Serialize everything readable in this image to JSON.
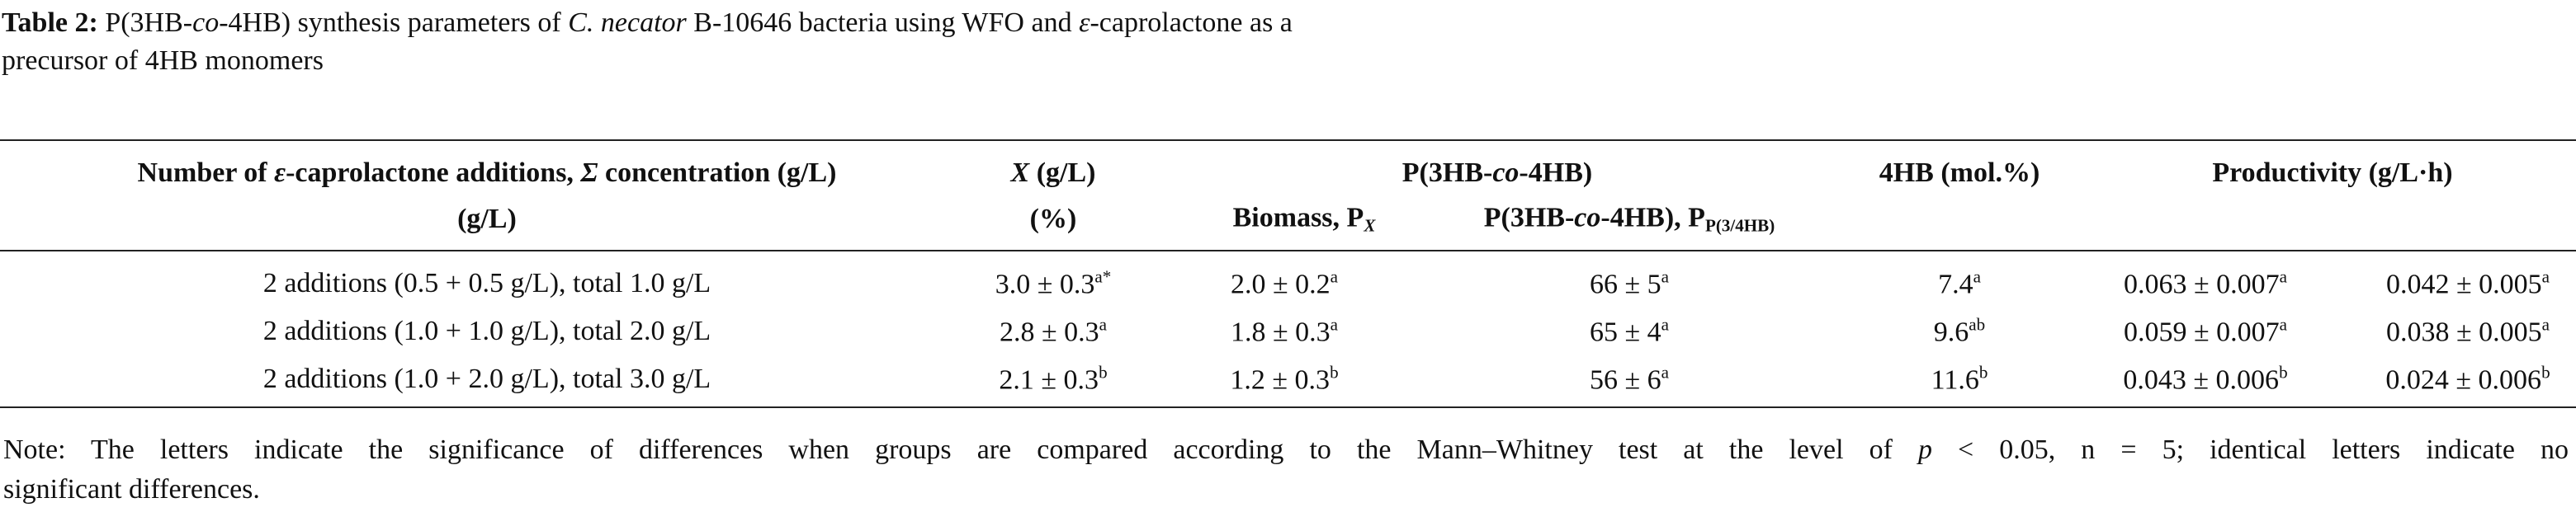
{
  "caption": {
    "lines": [
      [
        {
          "text": "Table 2:",
          "style": "bold"
        },
        {
          "text": " P(3HB-"
        },
        {
          "text": "co",
          "style": "italic"
        },
        {
          "text": "-4HB) synthesis parameters of "
        },
        {
          "text": "C. necator",
          "style": "italic"
        },
        {
          "text": " B-10646 bacteria using WFO and "
        },
        {
          "text": "ε",
          "style": "italic"
        },
        {
          "text": "-caprolactone as a"
        }
      ],
      [
        {
          "text": "precursor of 4HB monomers"
        }
      ]
    ]
  },
  "table": {
    "header": [
      [
        [
          {
            "text": "Number of "
          },
          {
            "text": "ε",
            "style": "italic"
          },
          {
            "text": "-caprolactone additions, "
          },
          {
            "text": "Σ",
            "style": "italic"
          },
          {
            "text": " concentration (g/L)"
          }
        ],
        [
          {
            "text": "X",
            "style": "italic"
          },
          {
            "text": " (g/L)"
          }
        ],
        [
          {
            "text": "P(3HB-"
          },
          {
            "text": "co",
            "style": "italic"
          },
          {
            "text": "-4HB)"
          }
        ],
        [
          {
            "text": "4HB (mol.%)"
          }
        ],
        [
          {
            "text": "Productivity (g/L·h)"
          }
        ]
      ],
      [
        [
          {
            "text": "(g/L)"
          }
        ],
        [
          {
            "text": "(%)"
          }
        ],
        [
          {
            "text": "Biomass, P"
          },
          {
            "text": "X",
            "style": "sub italic"
          }
        ],
        [
          {
            "text": "P(3HB-"
          },
          {
            "text": "co",
            "style": "italic"
          },
          {
            "text": "-4HB), P"
          },
          {
            "text": "P(3/4HB)",
            "style": "sub"
          }
        ]
      ]
    ],
    "rows": [
      [
        "2 additions (0.5 + 0.5 g/L), total 1.0 g/L",
        {
          "value": "3.0 ± 0.3",
          "sup": "a*"
        },
        {
          "value": "2.0 ± 0.2",
          "sup": "a"
        },
        {
          "value": "66 ± 5",
          "sup": "a"
        },
        {
          "value": "7.4",
          "sup": "a"
        },
        {
          "value": "0.063 ± 0.007",
          "sup": "a"
        },
        {
          "value": "0.042 ± 0.005",
          "sup": "a"
        }
      ],
      [
        "2 additions (1.0 + 1.0 g/L), total 2.0 g/L",
        {
          "value": "2.8 ± 0.3",
          "sup": "a"
        },
        {
          "value": "1.8 ± 0.3",
          "sup": "a"
        },
        {
          "value": "65 ± 4",
          "sup": "a"
        },
        {
          "value": "9.6",
          "sup": "ab"
        },
        {
          "value": "0.059 ± 0.007",
          "sup": "a"
        },
        {
          "value": "0.038 ± 0.005",
          "sup": "a"
        }
      ],
      [
        "2 additions (1.0 + 2.0 g/L), total 3.0 g/L",
        {
          "value": "2.1 ± 0.3",
          "sup": "b"
        },
        {
          "value": "1.2 ± 0.3",
          "sup": "b"
        },
        {
          "value": "56 ± 6",
          "sup": "a"
        },
        {
          "value": "11.6",
          "sup": "b"
        },
        {
          "value": "0.043 ± 0.006",
          "sup": "b"
        },
        {
          "value": "0.024 ± 0.006",
          "sup": "b"
        }
      ]
    ]
  },
  "note": {
    "lines": [
      [
        {
          "text": "Note: The letters indicate the significance of differences when groups are compared according to the Mann–Whitney test at the level of "
        },
        {
          "text": "p",
          "style": "italic"
        },
        {
          "text": " < 0.05, n = 5; identical letters indicate no"
        }
      ],
      [
        {
          "text": "significant differences."
        }
      ]
    ]
  }
}
